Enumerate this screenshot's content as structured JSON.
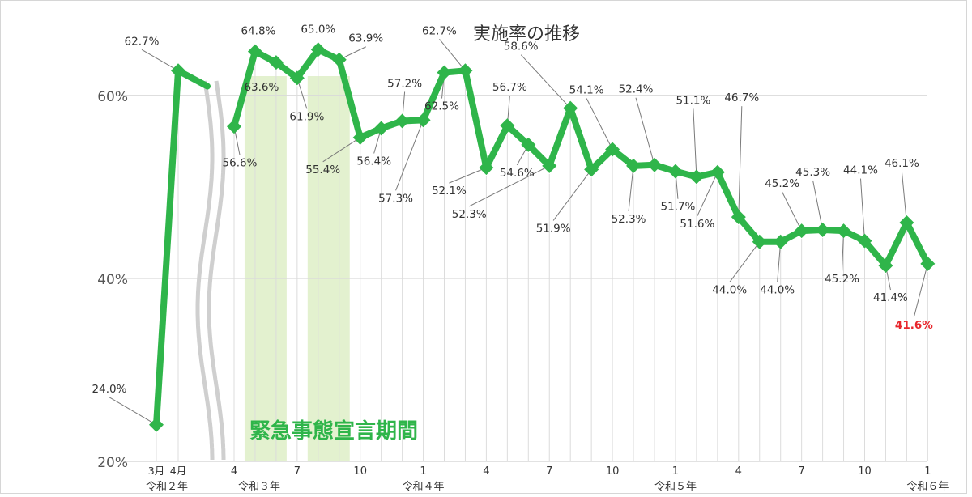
{
  "chart_data": {
    "type": "line",
    "title": "実施率の推移",
    "ylim": [
      20,
      66
    ],
    "y_ticks": [
      {
        "value": 20,
        "label": "20%"
      },
      {
        "value": 40,
        "label": "40%"
      },
      {
        "value": 60,
        "label": "60%"
      }
    ],
    "grid": true,
    "line_color": "#2fb54a",
    "label_color": "#333333",
    "highlight_color": "#e8262c",
    "band_color": "#e3f1cf",
    "band_label": "緊急事態宣言期間",
    "band_label_color": "#2fb54a",
    "axis_break": true,
    "segment1": {
      "x": [
        "3月",
        "4月"
      ],
      "values": [
        24.0,
        62.7
      ],
      "labels": [
        "24.0%",
        "62.7%"
      ],
      "era_label": "令和２年"
    },
    "segment2": {
      "months": [
        4,
        5,
        6,
        7,
        8,
        9,
        10,
        11,
        12,
        1,
        2,
        3,
        4,
        5,
        6,
        7,
        8,
        9,
        10,
        11,
        12,
        1,
        2,
        3,
        4,
        5,
        6,
        7,
        8,
        9,
        10,
        11,
        12,
        1
      ],
      "values": [
        56.6,
        64.8,
        63.6,
        61.9,
        65.0,
        63.9,
        55.4,
        56.4,
        57.2,
        57.3,
        62.5,
        62.7,
        52.1,
        56.7,
        54.6,
        52.3,
        58.6,
        51.9,
        54.1,
        52.3,
        52.4,
        51.7,
        51.1,
        51.6,
        46.7,
        44.0,
        44.0,
        45.2,
        45.3,
        45.2,
        44.1,
        41.4,
        46.1,
        41.6
      ],
      "labels": [
        "56.6%",
        "64.8%",
        "63.6%",
        "61.9%",
        "65.0%",
        "63.9%",
        "55.4%",
        "56.4%",
        "57.2%",
        "57.3%",
        "62.5%",
        "62.7%",
        "52.1%",
        "56.7%",
        "54.6%",
        "52.3%",
        "58.6%",
        "51.9%",
        "54.1%",
        "52.3%",
        "52.4%",
        "51.7%",
        "51.1%",
        "51.6%",
        "46.7%",
        "44.0%",
        "44.0%",
        "45.2%",
        "45.3%",
        "45.2%",
        "44.1%",
        "41.4%",
        "46.1%",
        "41.6%"
      ],
      "tick_labels": [
        {
          "index": 0,
          "label": "4"
        },
        {
          "index": 3,
          "label": "7"
        },
        {
          "index": 6,
          "label": "10"
        },
        {
          "index": 9,
          "label": "1"
        },
        {
          "index": 12,
          "label": "4"
        },
        {
          "index": 15,
          "label": "7"
        },
        {
          "index": 18,
          "label": "10"
        },
        {
          "index": 21,
          "label": "1"
        },
        {
          "index": 24,
          "label": "4"
        },
        {
          "index": 27,
          "label": "7"
        },
        {
          "index": 30,
          "label": "10"
        },
        {
          "index": 33,
          "label": "1"
        }
      ],
      "era_labels": [
        {
          "index": 0,
          "label": "令和３年"
        },
        {
          "index": 9,
          "label": "令和４年"
        },
        {
          "index": 21,
          "label": "令和５年"
        },
        {
          "index": 33,
          "label": "令和６年"
        }
      ],
      "highlight_index": 33,
      "emergency_periods": [
        {
          "start": 1,
          "end": 2
        },
        {
          "start": 4,
          "end": 5
        }
      ]
    }
  }
}
